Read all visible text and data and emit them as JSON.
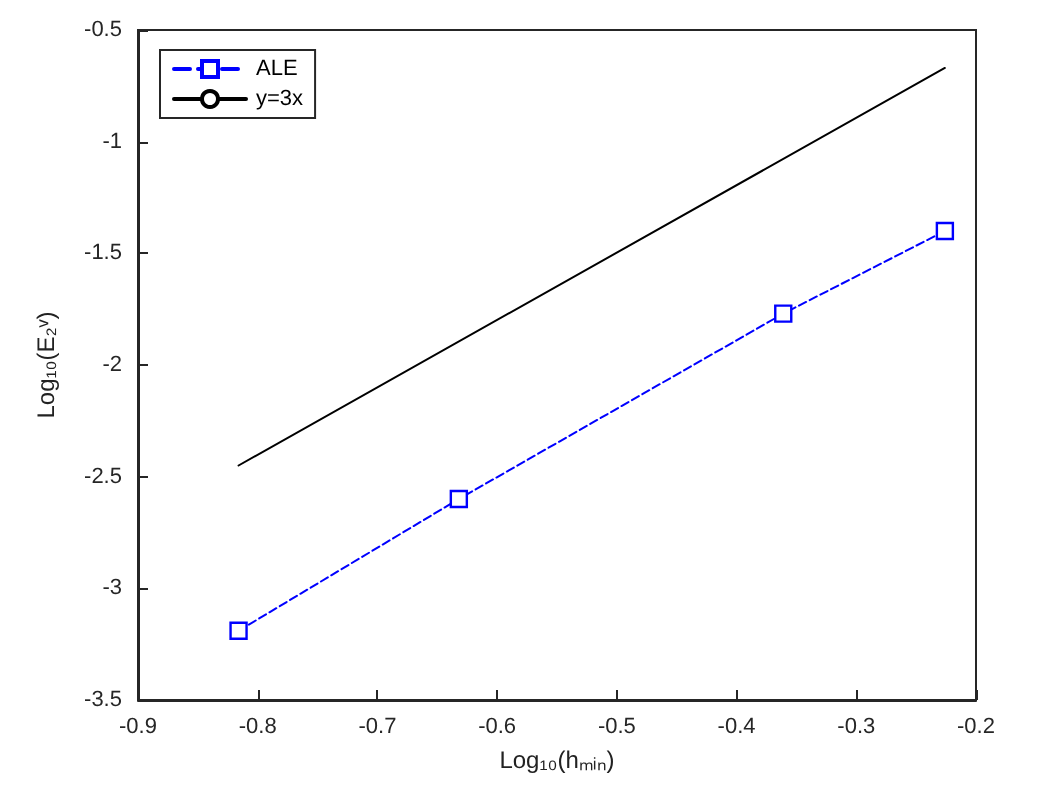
{
  "chart_data": {
    "type": "line",
    "xlabel": "Log₁₀(hₘᵢₙ)",
    "ylabel": "Log₁₀(E₂ᵛ)",
    "xlim": [
      -0.9,
      -0.2
    ],
    "xticks": [
      -0.9,
      -0.8,
      -0.7,
      -0.6,
      -0.5,
      -0.4,
      -0.3,
      -0.2
    ],
    "ylim": [
      -3.5,
      -0.5
    ],
    "yticks": [
      -3.5,
      -3,
      -2.5,
      -2,
      -1.5,
      -1,
      -0.5
    ],
    "grid": false,
    "legend": "top left",
    "series": [
      {
        "name": "ALE",
        "color": "#0000ff",
        "x": [
          -0.816,
          -0.632,
          -0.361,
          -0.226
        ],
        "values": [
          -3.19,
          -2.6,
          -1.77,
          -1.4
        ],
        "marker": "square",
        "line_style": "dashed"
      },
      {
        "name": "y=3x",
        "color": "#000000",
        "x": [
          -0.816,
          -0.226
        ],
        "values": [
          -2.45,
          -0.67
        ],
        "marker": "none",
        "line_style": "solid"
      }
    ]
  }
}
